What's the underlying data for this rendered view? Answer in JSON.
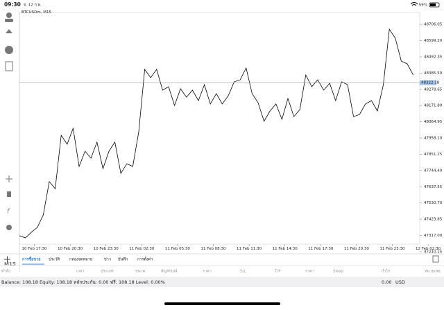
{
  "status_bar": {
    "time": "09:30",
    "date": "จ. 12 ก.พ.",
    "battery": "59%"
  },
  "sidebar": {
    "timeframe": "M15"
  },
  "chart_data": {
    "type": "line",
    "title": "BTCUSDm, M15",
    "series": [
      {
        "color": "#000000",
        "values": [
          47315,
          47301,
          47338,
          47370,
          47452,
          47671,
          47625,
          47976,
          47917,
          48022,
          47771,
          47871,
          47826,
          47931,
          47757,
          47871,
          47931,
          47726,
          47789,
          47771,
          47999,
          48410,
          48355,
          48410,
          48273,
          48296,
          48172,
          48282,
          48227,
          48273,
          48204,
          48309,
          48182,
          48250,
          48182,
          48236,
          48328,
          48341,
          48419,
          48250,
          48191,
          48068,
          48136,
          48182,
          48081,
          48218,
          48099,
          48145,
          48373,
          48296,
          48341,
          48273,
          48318,
          48204,
          48328,
          48309,
          48099,
          48113,
          48182,
          48204,
          48136,
          48309,
          48674,
          48615,
          48464,
          48446,
          48373
        ]
      }
    ],
    "current_price": 48322.18,
    "current_price_color": "#9cc3ee",
    "xlim": [
      0,
      67
    ],
    "ylim": [
      47187,
      48784
    ],
    "xticks": [
      {
        "value": 2.5,
        "label": "10 Feb 17:30"
      },
      {
        "value": 8.5,
        "label": "10 Feb 20:30"
      },
      {
        "value": 14.5,
        "label": "10 Feb 23:30"
      },
      {
        "value": 20.5,
        "label": "11 Feb 02:30"
      },
      {
        "value": 26.5,
        "label": "11 Feb 05:30"
      },
      {
        "value": 32.5,
        "label": "11 Feb 08:30"
      },
      {
        "value": 38.5,
        "label": "11 Feb 11:30"
      },
      {
        "value": 44.5,
        "label": "11 Feb 14:30"
      },
      {
        "value": 50.5,
        "label": "11 Feb 17:30"
      },
      {
        "value": 56.5,
        "label": "11 Feb 20:30"
      },
      {
        "value": 62.5,
        "label": "11 Feb 23:30"
      },
      {
        "value": 68.5,
        "label": "12 Feb 02:30"
      }
    ],
    "yticks": [
      48706.05,
      {
        "value": 48599.2,
        "label": "48599.20"
      },
      48492.35,
      {
        "value": 48385.5,
        "label": "48385.50"
      },
      48278.65,
      {
        "value": 48171.8,
        "label": "48171.80"
      },
      48064.95,
      {
        "value": 47958.1,
        "label": "47958.10"
      },
      47851.25,
      {
        "value": 47744.4,
        "label": "47744.40"
      },
      47637.55,
      {
        "value": 47530.7,
        "label": "47530.70"
      },
      47423.85,
      {
        "value": 47317,
        "label": "47317.00"
      },
      47210.15
    ],
    "grid": false
  },
  "tabs": {
    "items": [
      "การซื้อขาย",
      "ประวัติ",
      "กล่องจดหมาย",
      "ข่าว",
      "บันทึก",
      "การตั้งค่า"
    ],
    "active": 0
  },
  "table": {
    "columns": [
      "คำสั่ง",
      "เวลา",
      "ประเภท",
      "ขนาด",
      "สัญลักษณ์",
      "ราคา",
      "S/L",
      "T/P",
      "ราคา",
      "Swap",
      "กำไร",
      "หมายเหตุ"
    ]
  },
  "account": {
    "summary": "Balance: 108.18 Equity: 108.18 หลักประกัน: 0.00 ฟรี: 108.18 Level: 0.00%",
    "profit": "0.00",
    "currency": "USD"
  }
}
